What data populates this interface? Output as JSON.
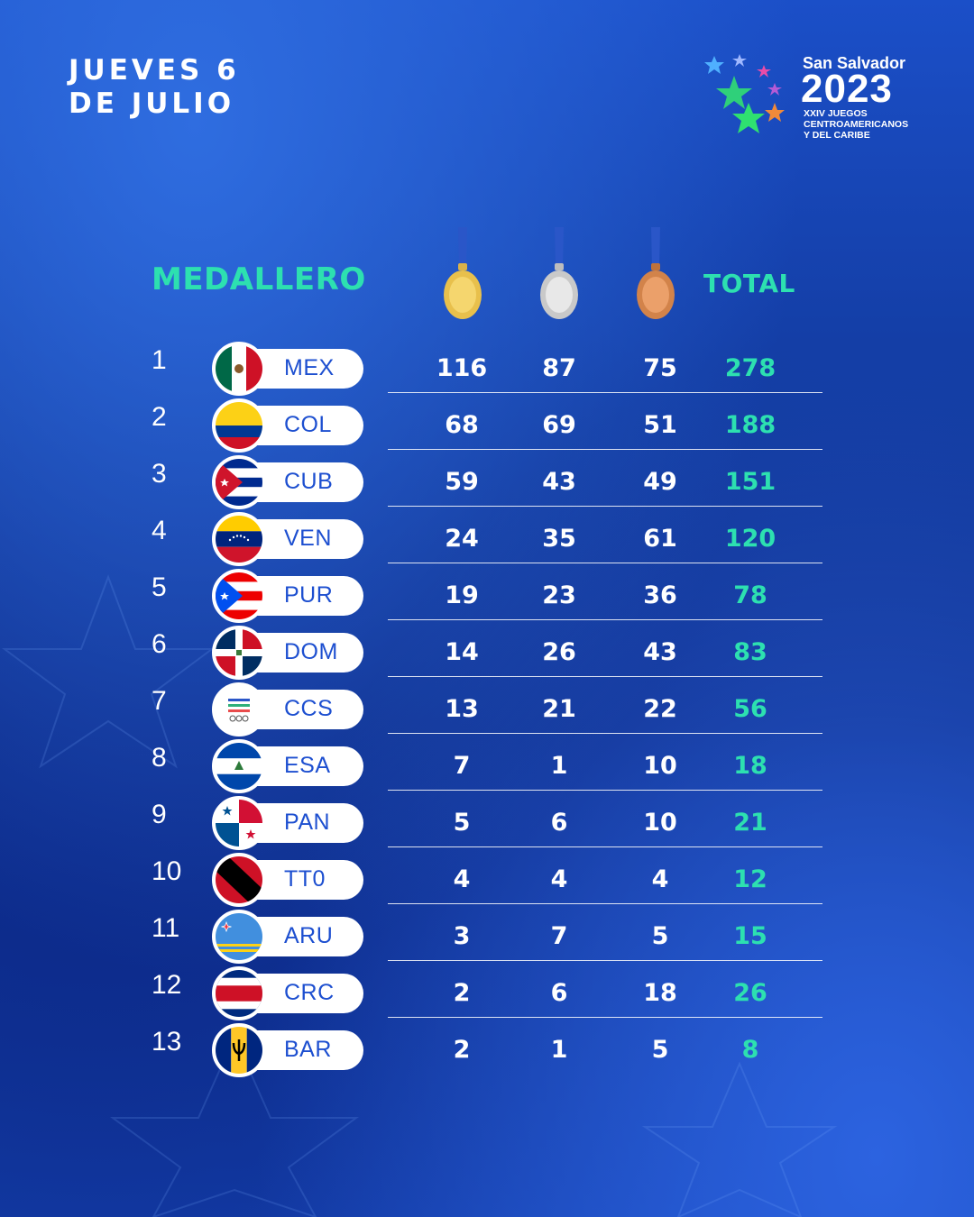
{
  "date": {
    "line1": "JUEVES 6",
    "line2": "DE JULIO"
  },
  "logo": {
    "city": "San Salvador",
    "year": "2023",
    "sub1": "XXIV JUEGOS",
    "sub2": "CENTROAMERICANOS",
    "sub3": "Y DEL CARIBE"
  },
  "table": {
    "heading": "MEDALLERO",
    "total_label": "TOTAL",
    "medal_icons": [
      "gold-medal-icon",
      "silver-medal-icon",
      "bronze-medal-icon"
    ],
    "rows": [
      {
        "rank": "1",
        "code": "MEX",
        "gold": "116",
        "silver": "87",
        "bronze": "75",
        "total": "278"
      },
      {
        "rank": "2",
        "code": "COL",
        "gold": "68",
        "silver": "69",
        "bronze": "51",
        "total": "188"
      },
      {
        "rank": "3",
        "code": "CUB",
        "gold": "59",
        "silver": "43",
        "bronze": "49",
        "total": "151"
      },
      {
        "rank": "4",
        "code": "VEN",
        "gold": "24",
        "silver": "35",
        "bronze": "61",
        "total": "120"
      },
      {
        "rank": "5",
        "code": "PUR",
        "gold": "19",
        "silver": "23",
        "bronze": "36",
        "total": "78"
      },
      {
        "rank": "6",
        "code": "DOM",
        "gold": "14",
        "silver": "26",
        "bronze": "43",
        "total": "83"
      },
      {
        "rank": "7",
        "code": "CCS",
        "gold": "13",
        "silver": "21",
        "bronze": "22",
        "total": "56"
      },
      {
        "rank": "8",
        "code": "ESA",
        "gold": "7",
        "silver": "1",
        "bronze": "10",
        "total": "18"
      },
      {
        "rank": "9",
        "code": "PAN",
        "gold": "5",
        "silver": "6",
        "bronze": "10",
        "total": "21"
      },
      {
        "rank": "10",
        "code": "TT0",
        "gold": "4",
        "silver": "4",
        "bronze": "4",
        "total": "12"
      },
      {
        "rank": "11",
        "code": "ARU",
        "gold": "3",
        "silver": "7",
        "bronze": "5",
        "total": "15"
      },
      {
        "rank": "12",
        "code": "CRC",
        "gold": "2",
        "silver": "6",
        "bronze": "18",
        "total": "26"
      },
      {
        "rank": "13",
        "code": "BAR",
        "gold": "2",
        "silver": "1",
        "bronze": "5",
        "total": "8"
      }
    ]
  },
  "colors": {
    "accent": "#2de0b0",
    "code_text": "#1d4fd0",
    "background": "#1643b3"
  }
}
